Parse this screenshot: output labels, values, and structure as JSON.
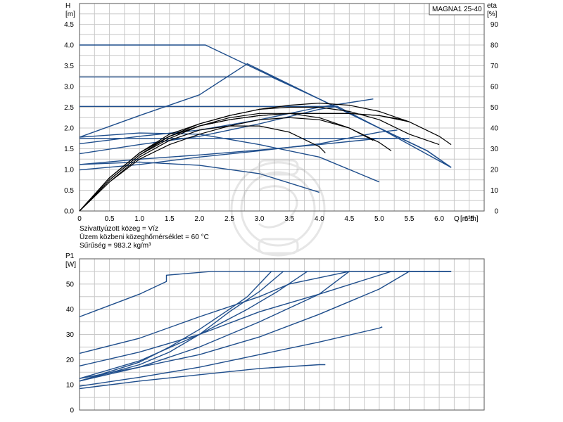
{
  "model_label": "MAGNA1 25-40",
  "info": {
    "line1": "Szivattyúzott közeg = Víz",
    "line2": "Üzem közbeni közeghőmérséklet = 60 °C",
    "line3": "Sűrűség = 983.2 kg/m³"
  },
  "colors": {
    "blue": "#1f4e8c",
    "black": "#000000",
    "grid": "#c8c8c8",
    "frame": "#555555"
  },
  "chart_data": [
    {
      "type": "line",
      "title": "",
      "ylabel": "H",
      "yunit": "[m]",
      "y2label": "eta",
      "y2unit": "[%]",
      "xlabel": "Q",
      "xunit": "[m³/h]",
      "xlim": [
        0,
        6.75
      ],
      "ylim": [
        0,
        5.0
      ],
      "y2lim": [
        0,
        100
      ],
      "grid": true,
      "x_ticks": [
        "0",
        "0.5",
        "1.0",
        "1.5",
        "2.0",
        "2.5",
        "3.0",
        "3.5",
        "4.0",
        "4.5",
        "5.0",
        "5.5",
        "6.0",
        "6.5"
      ],
      "x_tick_values": [
        0,
        0.5,
        1.0,
        1.5,
        2.0,
        2.5,
        3.0,
        3.5,
        4.0,
        4.5,
        5.0,
        5.5,
        6.0,
        6.5
      ],
      "y_ticks": [
        "0.0",
        "0.5",
        "1.0",
        "1.5",
        "2.0",
        "2.5",
        "3.0",
        "3.5",
        "4.0",
        "4.5"
      ],
      "y_tick_values": [
        0,
        0.5,
        1.0,
        1.5,
        2.0,
        2.5,
        3.0,
        3.5,
        4.0,
        4.5
      ],
      "y2_ticks": [
        "0",
        "10",
        "20",
        "30",
        "40",
        "50",
        "60",
        "70",
        "80",
        "90"
      ],
      "y2_tick_values": [
        0,
        10,
        20,
        30,
        40,
        50,
        60,
        70,
        80,
        90
      ],
      "head_curves": [
        {
          "color": "blue",
          "points": [
            [
              0,
              4.0
            ],
            [
              2.1,
              4.0
            ],
            [
              2.9,
              3.45
            ],
            [
              4.0,
              2.7
            ],
            [
              5.0,
              2.0
            ],
            [
              5.8,
              1.45
            ],
            [
              6.2,
              1.05
            ]
          ]
        },
        {
          "color": "blue",
          "points": [
            [
              0,
              3.23
            ],
            [
              3.2,
              3.23
            ],
            [
              4.0,
              2.7
            ],
            [
              5.0,
              2.0
            ],
            [
              5.8,
              1.45
            ],
            [
              6.2,
              1.05
            ]
          ]
        },
        {
          "color": "blue",
          "points": [
            [
              0,
              2.52
            ],
            [
              4.3,
              2.52
            ],
            [
              5.0,
              2.0
            ],
            [
              5.8,
              1.45
            ],
            [
              6.2,
              1.05
            ]
          ]
        },
        {
          "color": "blue",
          "points": [
            [
              0,
              1.75
            ],
            [
              5.5,
              1.75
            ]
          ]
        },
        {
          "color": "blue",
          "points": [
            [
              0,
              1.78
            ],
            [
              1.0,
              2.3
            ],
            [
              2.0,
              2.8
            ],
            [
              2.8,
              3.55
            ],
            [
              4.0,
              2.7
            ],
            [
              5.0,
              2.0
            ],
            [
              6.2,
              1.05
            ]
          ]
        },
        {
          "color": "blue",
          "points": [
            [
              0,
              1.62
            ],
            [
              1.0,
              1.8
            ],
            [
              2.0,
              1.95
            ],
            [
              3.0,
              2.2
            ],
            [
              4.0,
              2.5
            ],
            [
              4.9,
              2.7
            ]
          ]
        },
        {
          "color": "blue",
          "points": [
            [
              0,
              1.38
            ],
            [
              1.0,
              1.6
            ],
            [
              2.0,
              1.8
            ],
            [
              3.0,
              2.1
            ],
            [
              4.0,
              2.45
            ],
            [
              4.3,
              2.52
            ]
          ]
        },
        {
          "color": "blue",
          "points": [
            [
              0,
              1.12
            ],
            [
              1.0,
              1.25
            ],
            [
              2.0,
              1.35
            ],
            [
              3.0,
              1.47
            ],
            [
              4.0,
              1.6
            ],
            [
              5.0,
              1.75
            ],
            [
              5.5,
              1.75
            ]
          ]
        },
        {
          "color": "blue",
          "points": [
            [
              0,
              0.99
            ],
            [
              1.0,
              1.12
            ],
            [
              2.0,
              1.3
            ],
            [
              3.0,
              1.45
            ],
            [
              4.0,
              1.62
            ],
            [
              5.0,
              1.9
            ],
            [
              5.3,
              1.95
            ]
          ]
        },
        {
          "color": "blue",
          "points": [
            [
              0,
              1.78
            ],
            [
              1.0,
              1.88
            ],
            [
              2.0,
              1.85
            ],
            [
              3.0,
              1.6
            ],
            [
              4.0,
              1.3
            ],
            [
              5.0,
              0.7
            ]
          ]
        },
        {
          "color": "blue",
          "points": [
            [
              0,
              1.12
            ],
            [
              1.0,
              1.18
            ],
            [
              2.0,
              1.1
            ],
            [
              3.0,
              0.9
            ],
            [
              4.0,
              0.45
            ]
          ]
        }
      ],
      "efficiency_curves": [
        {
          "color": "black",
          "points": [
            [
              0,
              0
            ],
            [
              0.5,
              16
            ],
            [
              1.0,
              28
            ],
            [
              1.5,
              36
            ],
            [
              2.0,
              41
            ],
            [
              2.5,
              44
            ],
            [
              3.0,
              46
            ],
            [
              3.5,
              47
            ],
            [
              4.0,
              47
            ],
            [
              4.5,
              47
            ],
            [
              5.0,
              46
            ],
            [
              5.4,
              44
            ],
            [
              5.5,
              43
            ]
          ]
        },
        {
          "color": "black",
          "points": [
            [
              0,
              0
            ],
            [
              0.5,
              16
            ],
            [
              1.0,
              28
            ],
            [
              1.5,
              36
            ],
            [
              2.0,
              41
            ],
            [
              2.5,
              44
            ],
            [
              3.0,
              46
            ],
            [
              3.5,
              47
            ],
            [
              4.0,
              47
            ],
            [
              4.5,
              47
            ],
            [
              5.0,
              46
            ],
            [
              5.5,
              43
            ]
          ]
        },
        {
          "color": "black",
          "points": [
            [
              0,
              0
            ],
            [
              0.5,
              16
            ],
            [
              1.0,
              28
            ],
            [
              1.5,
              37
            ],
            [
              2.0,
              42
            ],
            [
              2.5,
              46
            ],
            [
              3.0,
              49
            ],
            [
              3.5,
              51
            ],
            [
              4.0,
              52
            ],
            [
              4.5,
              51
            ],
            [
              5.0,
              48
            ],
            [
              5.5,
              43
            ],
            [
              6.0,
              36
            ],
            [
              6.2,
              32
            ]
          ]
        },
        {
          "color": "black",
          "points": [
            [
              0,
              0
            ],
            [
              0.5,
              15
            ],
            [
              1.0,
              27
            ],
            [
              1.5,
              36
            ],
            [
              2.0,
              42
            ],
            [
              2.5,
              46
            ],
            [
              3.0,
              49
            ],
            [
              3.5,
              50
            ],
            [
              4.0,
              50
            ],
            [
              4.5,
              48
            ],
            [
              5.0,
              44
            ],
            [
              5.5,
              37
            ],
            [
              6.0,
              32
            ]
          ]
        },
        {
          "color": "black",
          "points": [
            [
              0,
              0
            ],
            [
              0.5,
              15
            ],
            [
              1.0,
              27
            ],
            [
              1.5,
              35
            ],
            [
              2.0,
              41
            ],
            [
              2.5,
              45
            ],
            [
              3.0,
              47
            ],
            [
              3.5,
              47
            ],
            [
              4.0,
              45
            ],
            [
              4.5,
              40
            ],
            [
              5.0,
              33
            ],
            [
              5.2,
              29
            ]
          ]
        },
        {
          "color": "black",
          "points": [
            [
              0,
              0
            ],
            [
              0.5,
              14
            ],
            [
              1.0,
              26
            ],
            [
              1.5,
              34
            ],
            [
              2.0,
              39
            ],
            [
              2.5,
              41
            ],
            [
              3.0,
              41
            ],
            [
              3.5,
              38
            ],
            [
              4.0,
              31
            ],
            [
              4.1,
              28
            ]
          ]
        },
        {
          "color": "black",
          "points": [
            [
              0,
              0
            ],
            [
              0.5,
              14
            ],
            [
              1.0,
              25
            ],
            [
              1.5,
              32
            ],
            [
              2.0,
              37
            ],
            [
              2.5,
              41
            ],
            [
              3.0,
              44
            ],
            [
              3.5,
              45
            ],
            [
              4.0,
              44
            ],
            [
              4.5,
              40
            ],
            [
              4.9,
              34
            ]
          ]
        }
      ]
    },
    {
      "type": "line",
      "title": "",
      "ylabel": "P1",
      "yunit": "[W]",
      "xlim": [
        0,
        6.75
      ],
      "ylim": [
        0,
        60
      ],
      "grid": true,
      "y_ticks": [
        "0",
        "10",
        "20",
        "30",
        "40",
        "50"
      ],
      "y_tick_values": [
        0,
        10,
        20,
        30,
        40,
        50
      ],
      "power_curves": [
        {
          "color": "blue",
          "points": [
            [
              0,
              37
            ],
            [
              0.5,
              41.5
            ],
            [
              1.0,
              46
            ],
            [
              1.45,
              51
            ],
            [
              1.45,
              53.5
            ],
            [
              2.2,
              55
            ],
            [
              6.2,
              55
            ]
          ]
        },
        {
          "color": "blue",
          "points": [
            [
              0,
              22.5
            ],
            [
              1.0,
              28.5
            ],
            [
              2.0,
              37
            ],
            [
              3.0,
              45
            ],
            [
              3.5,
              50
            ],
            [
              4.5,
              55
            ],
            [
              6.2,
              55
            ]
          ]
        },
        {
          "color": "blue",
          "points": [
            [
              0,
              17.5
            ],
            [
              1.0,
              23
            ],
            [
              2.0,
              30
            ],
            [
              3.0,
              39
            ],
            [
              4.0,
              46
            ],
            [
              5.2,
              55
            ],
            [
              6.2,
              55
            ]
          ]
        },
        {
          "color": "blue",
          "points": [
            [
              0,
              12.5
            ],
            [
              1.0,
              17
            ],
            [
              2.0,
              22
            ],
            [
              3.0,
              29
            ],
            [
              4.0,
              38
            ],
            [
              5.0,
              48
            ],
            [
              5.5,
              55
            ],
            [
              6.2,
              55
            ]
          ]
        },
        {
          "color": "blue",
          "points": [
            [
              0,
              11.5
            ],
            [
              1.0,
              17
            ],
            [
              2.0,
              25
            ],
            [
              3.0,
              35
            ],
            [
              4.0,
              46
            ],
            [
              4.5,
              55
            ]
          ]
        },
        {
          "color": "blue",
          "points": [
            [
              0,
              11.5
            ],
            [
              1.0,
              18
            ],
            [
              1.5,
              23
            ],
            [
              2.0,
              30
            ],
            [
              2.5,
              39
            ],
            [
              3.0,
              47
            ],
            [
              3.4,
              55
            ]
          ]
        },
        {
          "color": "blue",
          "points": [
            [
              0,
              11.5
            ],
            [
              1.0,
              19
            ],
            [
              1.5,
              25
            ],
            [
              2.0,
              32
            ],
            [
              2.5,
              40
            ],
            [
              2.8,
              45
            ],
            [
              3.2,
              55
            ]
          ]
        },
        {
          "color": "blue",
          "points": [
            [
              0,
              12.5
            ],
            [
              1.0,
              19.5
            ],
            [
              2.0,
              30
            ],
            [
              2.8,
              40
            ],
            [
              3.3,
              47
            ],
            [
              3.8,
              55
            ]
          ]
        },
        {
          "color": "blue",
          "points": [
            [
              0,
              9.5
            ],
            [
              1.0,
              13
            ],
            [
              2.0,
              17
            ],
            [
              3.0,
              22
            ],
            [
              4.0,
              27
            ],
            [
              5.0,
              32.5
            ],
            [
              5.05,
              33
            ]
          ]
        },
        {
          "color": "blue",
          "points": [
            [
              0,
              8.5
            ],
            [
              1.0,
              11.5
            ],
            [
              2.0,
              14
            ],
            [
              3.0,
              16.5
            ],
            [
              4.0,
              18
            ],
            [
              4.1,
              18
            ]
          ]
        }
      ]
    }
  ]
}
